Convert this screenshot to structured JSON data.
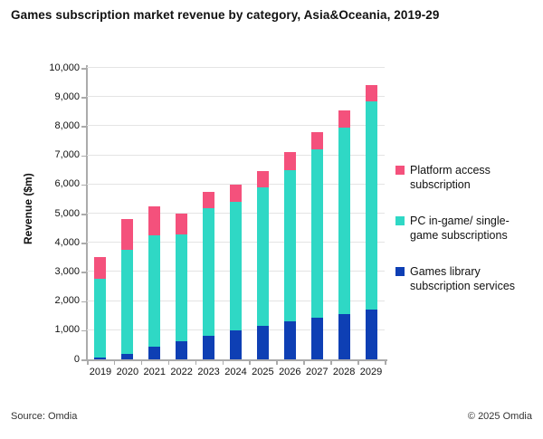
{
  "title": "Games subscription market revenue by category, Asia&Oceania, 2019-29",
  "y_axis": {
    "label": "Revenue ($m)"
  },
  "legend": {
    "items": [
      {
        "label": "Platform access subscription",
        "lines": [
          "Platform access",
          "subscription"
        ],
        "color": "#F4517C"
      },
      {
        "label": "PC in-game/ single-game subscriptions",
        "lines": [
          "PC in-game/ single-",
          "game subscriptions"
        ],
        "color": "#2FD8C5"
      },
      {
        "label": "Games library subscription services",
        "lines": [
          "Games library",
          "subscription services"
        ],
        "color": "#0E3FB4"
      }
    ]
  },
  "footer": {
    "source": "Source: Omdia",
    "copyright": "© 2025 Omdia"
  },
  "chart_data": {
    "type": "bar",
    "stacked": true,
    "title": "Games subscription market revenue by category, Asia&Oceania, 2019-29",
    "xlabel": "",
    "ylabel": "Revenue ($m)",
    "ylim": [
      0,
      10000
    ],
    "ytick_step": 1000,
    "grid": true,
    "legend_position": "right",
    "units": "$m",
    "categories": [
      "2019",
      "2020",
      "2021",
      "2022",
      "2023",
      "2024",
      "2025",
      "2026",
      "2027",
      "2028",
      "2029"
    ],
    "series": [
      {
        "name": "Games library subscription services",
        "color": "#0E3FB4",
        "values": [
          60,
          200,
          450,
          620,
          800,
          1000,
          1150,
          1300,
          1420,
          1550,
          1700
        ]
      },
      {
        "name": "PC in-game/ single-game subscriptions",
        "color": "#2FD8C5",
        "values": [
          2690,
          3550,
          3800,
          3680,
          4400,
          4400,
          4750,
          5200,
          5780,
          6400,
          7150
        ]
      },
      {
        "name": "Platform access subscription",
        "color": "#F4517C",
        "values": [
          750,
          1050,
          1000,
          700,
          550,
          600,
          550,
          600,
          600,
          600,
          550
        ]
      }
    ],
    "totals": [
      3500,
      4800,
      5250,
      5000,
      5750,
      6000,
      6450,
      7100,
      7800,
      8550,
      9400
    ]
  }
}
